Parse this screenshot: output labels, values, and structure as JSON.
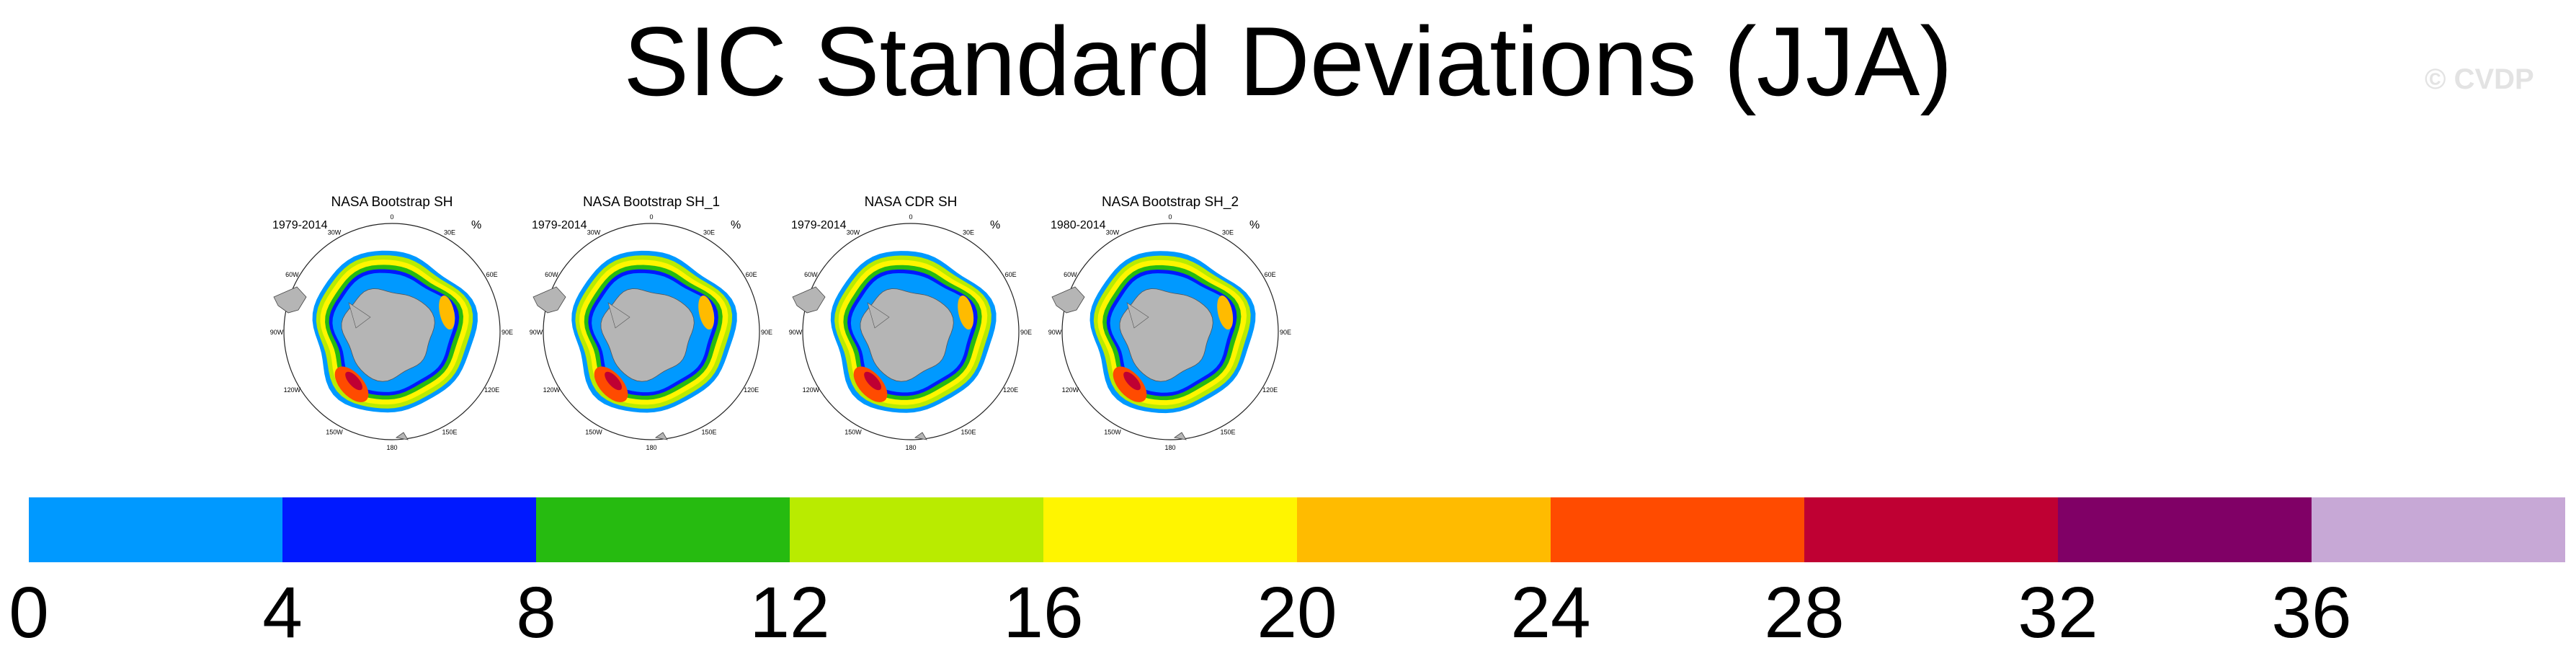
{
  "title": "SIC Standard Deviations (JJA)",
  "watermark": "© CVDP",
  "panels": [
    {
      "title": "NASA Bootstrap SH",
      "years": "1979-2014",
      "unit": "%"
    },
    {
      "title": "NASA Bootstrap SH_1",
      "years": "1979-2014",
      "unit": "%"
    },
    {
      "title": "NASA CDR SH",
      "years": "1979-2014",
      "unit": "%"
    },
    {
      "title": "NASA Bootstrap SH_2",
      "years": "1980-2014",
      "unit": "%"
    }
  ],
  "map_labels": [
    "0",
    "30E",
    "60E",
    "90E",
    "120E",
    "150E",
    "180",
    "150W",
    "120W",
    "90W",
    "60W",
    "30W"
  ],
  "colorbar": {
    "colors": [
      "#0099ff",
      "#0019ff",
      "#26bb10",
      "#b9eb00",
      "#fff500",
      "#ffbb00",
      "#ff4b00",
      "#bf0033",
      "#800066",
      "#c7a8d6"
    ],
    "ticks": [
      "0",
      "4",
      "8",
      "12",
      "16",
      "20",
      "24",
      "28",
      "32",
      "36"
    ]
  },
  "map_colors": {
    "land": "#b5b5b5",
    "ocean": "#ffffff"
  }
}
